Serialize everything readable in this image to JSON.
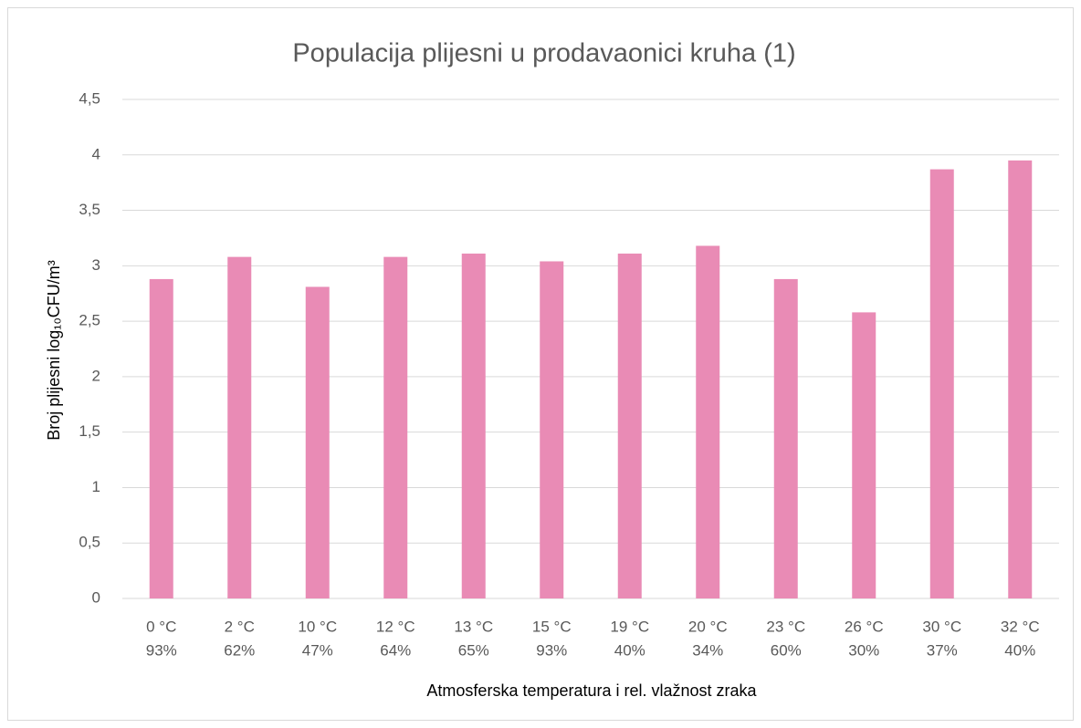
{
  "chart_data": {
    "type": "bar",
    "title": "Populacija plijesni u prodavaonici kruha (1)",
    "x_label": "Atmosferska temperatura i rel. vlažnost zraka",
    "y_label": "Broj plijesni log₁₀CFU/m³",
    "categories": [
      [
        "0 °C",
        "93%"
      ],
      [
        "2 °C",
        "62%"
      ],
      [
        "10 °C",
        "47%"
      ],
      [
        "12 °C",
        "64%"
      ],
      [
        "13 °C",
        "65%"
      ],
      [
        "15 °C",
        "93%"
      ],
      [
        "19 °C",
        "40%"
      ],
      [
        "20 °C",
        "34%"
      ],
      [
        "23 °C",
        "60%"
      ],
      [
        "26 °C",
        "30%"
      ],
      [
        "30 °C",
        "37%"
      ],
      [
        "32 °C",
        "40%"
      ]
    ],
    "values": [
      2.88,
      3.08,
      2.81,
      3.08,
      3.11,
      3.04,
      3.11,
      3.18,
      2.88,
      2.58,
      3.87,
      3.95
    ],
    "color": "#e98bb5",
    "ylim": [
      0,
      4.5
    ],
    "yticks": [
      0,
      {
        "value": 0.5,
        "label": "0,5"
      },
      1,
      {
        "value": 1.5,
        "label": "1,5"
      },
      2,
      {
        "value": 2.5,
        "label": "2,5"
      },
      3,
      {
        "value": 3.5,
        "label": "3,5"
      },
      4,
      {
        "value": 4.5,
        "label": "4,5"
      }
    ],
    "grid": true
  }
}
